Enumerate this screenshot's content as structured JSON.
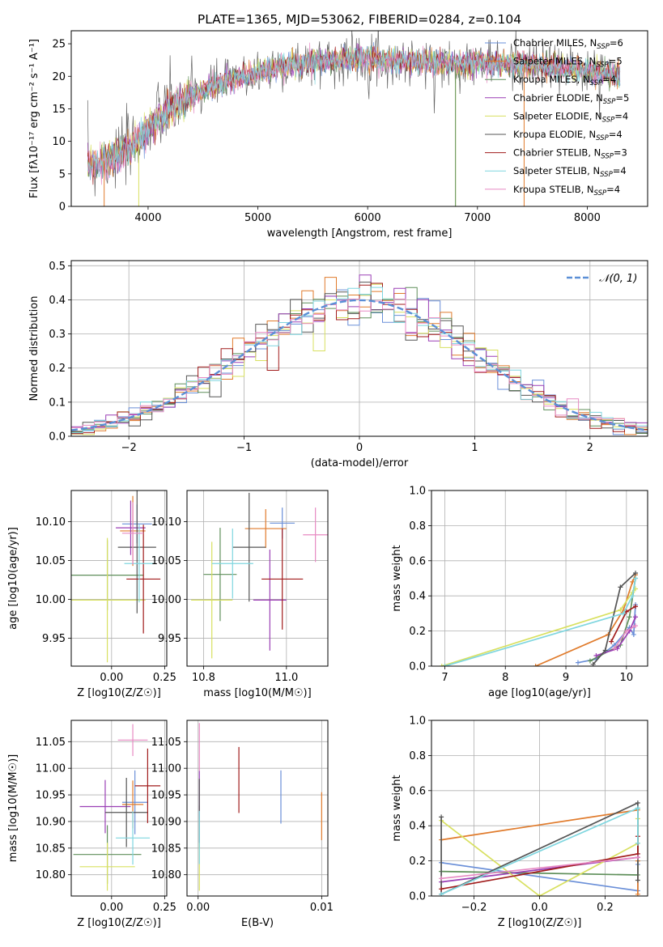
{
  "figure": {
    "title": "PLATE=1365, MJD=53062, FIBERID=0284, z=0.104"
  },
  "colors": [
    "#6a8fd8",
    "#e07b2c",
    "#5f8f5a",
    "#9b3fb5",
    "#d8e060",
    "#555555",
    "#a11c1c",
    "#7fd6df",
    "#e78ac3"
  ],
  "chart_data": [
    {
      "id": "spectrum",
      "type": "line",
      "xlabel": "wavelength [Angstrom, rest frame]",
      "ylabel": "Flux [fλ10⁻¹⁷ erg cm⁻² s⁻¹ A⁻¹]",
      "xlim": [
        3300,
        8550
      ],
      "ylim": [
        0,
        27
      ],
      "xticks": [
        4000,
        5000,
        6000,
        7000,
        8000
      ],
      "yticks": [
        0,
        5,
        10,
        15,
        20,
        25
      ],
      "grid": false,
      "legend_position": "top-right",
      "series": [
        {
          "name": "Chabrier MILES, N_SSP=6",
          "color": "#6a8fd8"
        },
        {
          "name": "Salpeter MILES, N_SSP=5",
          "color": "#e07b2c"
        },
        {
          "name": "Kroupa MILES, N_SSP=4",
          "color": "#5f8f5a"
        },
        {
          "name": "Chabrier ELODIE, N_SSP=5",
          "color": "#9b3fb5"
        },
        {
          "name": "Salpeter ELODIE, N_SSP=4",
          "color": "#d8e060"
        },
        {
          "name": "Kroupa ELODIE, N_SSP=4",
          "color": "#555555"
        },
        {
          "name": "Chabrier STELIB, N_SSP=3",
          "color": "#a11c1c"
        },
        {
          "name": "Salpeter STELIB, N_SSP=4",
          "color": "#7fd6df"
        },
        {
          "name": "Kroupa STELIB, N_SSP=4",
          "color": "#e78ac3"
        }
      ],
      "continuum": {
        "x": [
          3450,
          3550,
          3700,
          3850,
          3950,
          4050,
          4250,
          4400,
          4600,
          4800,
          5000,
          5200,
          5400,
          5600,
          5800,
          6000,
          6200,
          6400,
          6600,
          6800,
          7000,
          7200,
          7400,
          7600,
          7800,
          8000,
          8300
        ],
        "y": [
          6.5,
          6.8,
          7.5,
          9.0,
          11.0,
          13.0,
          15.5,
          17.0,
          18.5,
          19.5,
          20.5,
          21.5,
          22.0,
          22.3,
          22.6,
          22.8,
          22.4,
          22.2,
          22.0,
          22.0,
          22.2,
          22.0,
          21.8,
          21.6,
          21.3,
          21.0,
          20.0
        ]
      }
    },
    {
      "id": "residual-histogram",
      "type": "histogram",
      "xlabel": "(data-model)/error",
      "ylabel": "Normed distribution",
      "xlim": [
        -2.5,
        2.5
      ],
      "ylim": [
        0,
        0.515
      ],
      "xticks": [
        -2,
        -1,
        0,
        1,
        2
      ],
      "yticks": [
        0.0,
        0.1,
        0.2,
        0.3,
        0.4,
        0.5
      ],
      "grid": true,
      "legend_position": "top-right",
      "legend": [
        {
          "name": "𝒩(0, 1)",
          "color": "#5b8fd6",
          "style": "dashed"
        }
      ],
      "bin_edges": [
        -2.5,
        2.5
      ],
      "bin_count": 50,
      "reference_curve": "normal(0,1)"
    },
    {
      "id": "age-vs-Z",
      "type": "errorbar",
      "xlabel": "Z [log10(Z/Z☉)]",
      "ylabel": "age  [log10(age/yr)]",
      "xlim": [
        -0.19,
        0.26
      ],
      "ylim": [
        9.914,
        10.14
      ],
      "xticks": [
        0.0,
        0.25
      ],
      "yticks": [
        9.95,
        10.0,
        10.05,
        10.1
      ],
      "grid": true,
      "points": [
        {
          "x": 0.12,
          "y": 10.097,
          "xerr": 0.07,
          "yerr": 0.025,
          "color": "#6a8fd8"
        },
        {
          "x": 0.1,
          "y": 10.088,
          "xerr": 0.06,
          "yerr": 0.045,
          "color": "#e07b2c"
        },
        {
          "x": -0.02,
          "y": 10.031,
          "xerr": 0.17,
          "yerr": 0.045,
          "color": "#5f8f5a"
        },
        {
          "x": 0.09,
          "y": 10.092,
          "xerr": 0.07,
          "yerr": 0.035,
          "color": "#9b3fb5"
        },
        {
          "x": -0.02,
          "y": 9.999,
          "xerr": 0.18,
          "yerr": 0.08,
          "color": "#d8e060"
        },
        {
          "x": 0.12,
          "y": 10.067,
          "xerr": 0.09,
          "yerr": 0.085,
          "color": "#555555"
        },
        {
          "x": 0.15,
          "y": 10.026,
          "xerr": 0.08,
          "yerr": 0.07,
          "color": "#a11c1c"
        },
        {
          "x": 0.13,
          "y": 10.046,
          "xerr": 0.07,
          "yerr": 0.05,
          "color": "#7fd6df"
        },
        {
          "x": 0.1,
          "y": 10.085,
          "xerr": 0.05,
          "yerr": 0.04,
          "color": "#e78ac3"
        }
      ]
    },
    {
      "id": "age-vs-mass",
      "type": "errorbar",
      "xlabel": "mass [log10(M/M☉)]",
      "ylabel": "",
      "xlim": [
        10.76,
        11.1
      ],
      "ylim": [
        9.914,
        10.14
      ],
      "xticks": [
        10.8,
        11.0
      ],
      "yticks": [
        9.95,
        10.0,
        10.05,
        10.1
      ],
      "grid": true,
      "points": [
        {
          "x": 10.99,
          "y": 10.098,
          "xerr": 0.03,
          "yerr": 0.02,
          "color": "#6a8fd8"
        },
        {
          "x": 10.95,
          "y": 10.091,
          "xerr": 0.05,
          "yerr": 0.025,
          "color": "#e07b2c"
        },
        {
          "x": 10.84,
          "y": 10.032,
          "xerr": 0.04,
          "yerr": 0.06,
          "color": "#5f8f5a"
        },
        {
          "x": 10.96,
          "y": 9.999,
          "xerr": 0.04,
          "yerr": 0.065,
          "color": "#9b3fb5"
        },
        {
          "x": 10.82,
          "y": 9.999,
          "xerr": 0.05,
          "yerr": 0.075,
          "color": "#d8e060"
        },
        {
          "x": 10.91,
          "y": 10.067,
          "xerr": 0.04,
          "yerr": 0.07,
          "color": "#555555"
        },
        {
          "x": 10.99,
          "y": 10.026,
          "xerr": 0.05,
          "yerr": 0.065,
          "color": "#a11c1c"
        },
        {
          "x": 10.87,
          "y": 10.046,
          "xerr": 0.05,
          "yerr": 0.045,
          "color": "#7fd6df"
        },
        {
          "x": 11.07,
          "y": 10.083,
          "xerr": 0.03,
          "yerr": 0.035,
          "color": "#e78ac3"
        }
      ]
    },
    {
      "id": "mass-weight-vs-age",
      "type": "line",
      "xlabel": "age  [log10(age/yr)]",
      "ylabel": "mass weight",
      "xlim": [
        6.78,
        10.35
      ],
      "ylim": [
        0,
        1
      ],
      "xticks": [
        7,
        8,
        9,
        10
      ],
      "yticks": [
        0.0,
        0.2,
        0.4,
        0.6,
        0.8,
        1.0
      ],
      "grid": true,
      "series": [
        {
          "color": "#6a8fd8",
          "x": [
            9.2,
            9.5,
            9.8,
            10.05,
            10.12,
            10.15
          ],
          "y": [
            0.02,
            0.04,
            0.12,
            0.22,
            0.18,
            0.35
          ]
        },
        {
          "color": "#e07b2c",
          "x": [
            8.5,
            9.7,
            9.95,
            10.1,
            10.15
          ],
          "y": [
            0.0,
            0.18,
            0.32,
            0.48,
            0.52
          ]
        },
        {
          "color": "#5f8f5a",
          "x": [
            9.4,
            9.9,
            10.05,
            10.15
          ],
          "y": [
            0.03,
            0.12,
            0.28,
            0.5
          ]
        },
        {
          "color": "#9b3fb5",
          "x": [
            9.5,
            9.85,
            10.05,
            10.15
          ],
          "y": [
            0.06,
            0.1,
            0.2,
            0.28
          ]
        },
        {
          "color": "#d8e060",
          "x": [
            6.95,
            9.9,
            10.1,
            10.15
          ],
          "y": [
            0.0,
            0.32,
            0.42,
            0.44
          ]
        },
        {
          "color": "#555555",
          "x": [
            9.45,
            9.65,
            9.9,
            10.15
          ],
          "y": [
            0.01,
            0.09,
            0.45,
            0.53
          ]
        },
        {
          "color": "#a11c1c",
          "x": [
            9.75,
            10.0,
            10.15
          ],
          "y": [
            0.14,
            0.31,
            0.34
          ]
        },
        {
          "color": "#7fd6df",
          "x": [
            7.0,
            9.95,
            10.1,
            10.15
          ],
          "y": [
            0.0,
            0.3,
            0.4,
            0.5
          ]
        },
        {
          "color": "#e78ac3",
          "x": [
            9.8,
            10.0,
            10.15
          ],
          "y": [
            0.1,
            0.2,
            0.23
          ]
        }
      ]
    },
    {
      "id": "mass-vs-Z",
      "type": "errorbar",
      "xlabel": "Z [log10(Z/Z☉)]",
      "ylabel": "mass [log10(M/M☉)]",
      "xlim": [
        -0.19,
        0.26
      ],
      "ylim": [
        10.76,
        11.09
      ],
      "xticks": [
        0.0,
        0.25
      ],
      "yticks": [
        10.8,
        10.85,
        10.9,
        10.95,
        11.0,
        11.05
      ],
      "grid": true,
      "points": [
        {
          "x": 0.11,
          "y": 10.936,
          "xerr": 0.06,
          "yerr": 0.06,
          "color": "#6a8fd8"
        },
        {
          "x": 0.1,
          "y": 10.932,
          "xerr": 0.05,
          "yerr": 0.045,
          "color": "#e07b2c"
        },
        {
          "x": -0.02,
          "y": 10.838,
          "xerr": 0.16,
          "yerr": 0.055,
          "color": "#5f8f5a"
        },
        {
          "x": -0.03,
          "y": 10.928,
          "xerr": 0.12,
          "yerr": 0.05,
          "color": "#9b3fb5"
        },
        {
          "x": -0.02,
          "y": 10.815,
          "xerr": 0.13,
          "yerr": 0.045,
          "color": "#d8e060"
        },
        {
          "x": 0.07,
          "y": 10.917,
          "xerr": 0.1,
          "yerr": 0.065,
          "color": "#555555"
        },
        {
          "x": 0.17,
          "y": 10.967,
          "xerr": 0.06,
          "yerr": 0.07,
          "color": "#a11c1c"
        },
        {
          "x": 0.1,
          "y": 10.869,
          "xerr": 0.08,
          "yerr": 0.05,
          "color": "#7fd6df"
        },
        {
          "x": 0.1,
          "y": 11.053,
          "xerr": 0.07,
          "yerr": 0.03,
          "color": "#e78ac3"
        }
      ]
    },
    {
      "id": "mass-vs-EBV",
      "type": "errorbar",
      "xlabel": "E(B-V)",
      "ylabel": "",
      "xlim": [
        -0.0009,
        0.0105
      ],
      "ylim": [
        10.76,
        11.09
      ],
      "xticks": [
        0.0,
        0.01
      ],
      "yticks": [
        10.8,
        10.85,
        10.9,
        10.95,
        11.0,
        11.05
      ],
      "grid": true,
      "points": [
        {
          "x": 0.0067,
          "y": 10.946,
          "yerr": 0.05,
          "color": "#6a8fd8"
        },
        {
          "x": 0.01,
          "y": 10.91,
          "yerr": 0.045,
          "color": "#e07b2c"
        },
        {
          "x": 0.0001,
          "y": 10.89,
          "yerr": 0.04,
          "color": "#5f8f5a"
        },
        {
          "x": 0.0001,
          "y": 10.95,
          "yerr": 0.045,
          "color": "#9b3fb5"
        },
        {
          "x": 0.0001,
          "y": 10.815,
          "yerr": 0.045,
          "color": "#d8e060"
        },
        {
          "x": 0.0001,
          "y": 10.92,
          "yerr": 0.06,
          "color": "#555555"
        },
        {
          "x": 0.0033,
          "y": 10.978,
          "yerr": 0.062,
          "color": "#a11c1c"
        },
        {
          "x": 0.0001,
          "y": 10.87,
          "yerr": 0.05,
          "color": "#7fd6df"
        },
        {
          "x": 0.0001,
          "y": 11.04,
          "yerr": 0.045,
          "color": "#e78ac3"
        }
      ]
    },
    {
      "id": "mass-weight-vs-Z",
      "type": "line",
      "xlabel": "Z [log10(Z/Z☉)]",
      "ylabel": "mass weight",
      "xlim": [
        -0.33,
        0.33
      ],
      "ylim": [
        0,
        1
      ],
      "xticks": [
        -0.2,
        0.0,
        0.2
      ],
      "yticks": [
        0.0,
        0.2,
        0.4,
        0.6,
        0.8,
        1.0
      ],
      "grid": true,
      "series": [
        {
          "color": "#6a8fd8",
          "x": [
            -0.3,
            0.3,
            0.3
          ],
          "y": [
            0.19,
            0.03,
            0.18
          ]
        },
        {
          "color": "#e07b2c",
          "x": [
            -0.3,
            0.3,
            0.3,
            0.3
          ],
          "y": [
            0.32,
            0.49,
            0.01,
            0.2
          ]
        },
        {
          "color": "#5f8f5a",
          "x": [
            -0.3,
            0.3,
            0.3
          ],
          "y": [
            0.14,
            0.12,
            0.5
          ]
        },
        {
          "color": "#9b3fb5",
          "x": [
            -0.3,
            0.3,
            0.3
          ],
          "y": [
            0.08,
            0.22,
            0.24
          ]
        },
        {
          "color": "#d8e060",
          "x": [
            -0.3,
            0.0,
            0.3,
            0.3
          ],
          "y": [
            0.43,
            0.0,
            0.3,
            0.44
          ]
        },
        {
          "color": "#555555",
          "x": [
            -0.3,
            -0.3,
            0.3,
            0.3
          ],
          "y": [
            0.45,
            0.01,
            0.53,
            0.09
          ]
        },
        {
          "color": "#a11c1c",
          "x": [
            -0.3,
            0.3,
            0.3
          ],
          "y": [
            0.04,
            0.24,
            0.34
          ]
        },
        {
          "color": "#7fd6df",
          "x": [
            -0.3,
            0.3,
            0.3
          ],
          "y": [
            0.01,
            0.5,
            0.3
          ]
        },
        {
          "color": "#e78ac3",
          "x": [
            -0.3,
            0.3
          ],
          "y": [
            0.1,
            0.22
          ]
        }
      ]
    }
  ]
}
